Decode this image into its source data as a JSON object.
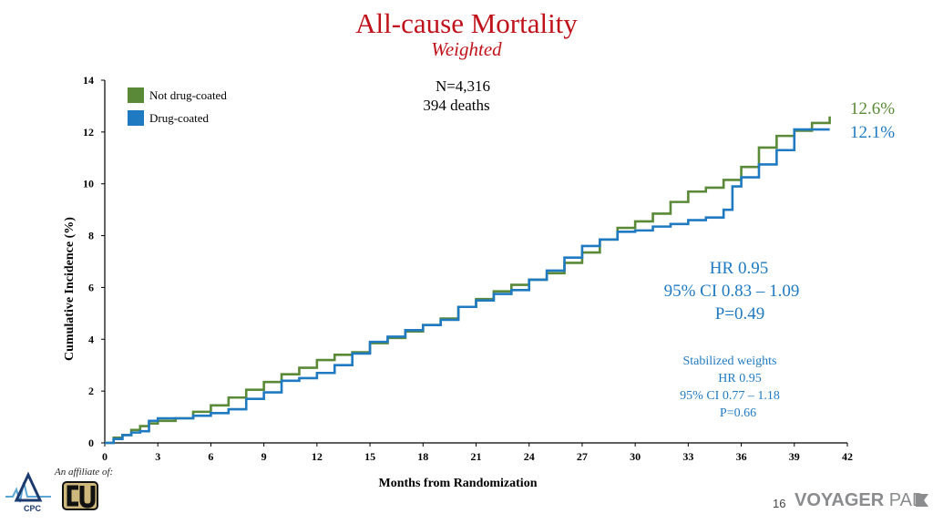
{
  "header": {
    "title": "All-cause Mortality",
    "subtitle": "Weighted"
  },
  "chart_data": {
    "type": "line",
    "xlabel": "Months from Randomization",
    "ylabel": "Cumulative Incidence (%)",
    "xlim": [
      0,
      42
    ],
    "ylim": [
      0,
      14
    ],
    "xticks": [
      0,
      3,
      6,
      9,
      12,
      15,
      18,
      21,
      24,
      27,
      30,
      33,
      36,
      39,
      42
    ],
    "yticks": [
      0,
      2,
      4,
      6,
      8,
      10,
      12,
      14
    ],
    "legend_position": "top-left",
    "series": [
      {
        "name": "Not drug-coated",
        "color": "#5a8a37",
        "end_label": "12.6%",
        "points": [
          [
            0,
            0
          ],
          [
            0.5,
            0.2
          ],
          [
            1,
            0.3
          ],
          [
            1.5,
            0.5
          ],
          [
            2,
            0.65
          ],
          [
            2.5,
            0.75
          ],
          [
            3,
            0.85
          ],
          [
            4,
            0.95
          ],
          [
            5,
            1.2
          ],
          [
            6,
            1.45
          ],
          [
            7,
            1.75
          ],
          [
            8,
            2.05
          ],
          [
            9,
            2.35
          ],
          [
            10,
            2.65
          ],
          [
            11,
            2.9
          ],
          [
            12,
            3.2
          ],
          [
            13,
            3.4
          ],
          [
            14,
            3.5
          ],
          [
            15,
            3.85
          ],
          [
            16,
            4.05
          ],
          [
            17,
            4.3
          ],
          [
            18,
            4.55
          ],
          [
            19,
            4.8
          ],
          [
            20,
            5.25
          ],
          [
            21,
            5.55
          ],
          [
            22,
            5.85
          ],
          [
            23,
            6.1
          ],
          [
            24,
            6.3
          ],
          [
            25,
            6.55
          ],
          [
            26,
            6.95
          ],
          [
            27,
            7.35
          ],
          [
            28,
            7.85
          ],
          [
            29,
            8.3
          ],
          [
            30,
            8.55
          ],
          [
            31,
            8.85
          ],
          [
            32,
            9.3
          ],
          [
            33,
            9.7
          ],
          [
            34,
            9.85
          ],
          [
            35,
            10.15
          ],
          [
            36,
            10.65
          ],
          [
            37,
            11.4
          ],
          [
            38,
            11.85
          ],
          [
            39,
            12.05
          ],
          [
            40,
            12.35
          ],
          [
            41,
            12.6
          ]
        ]
      },
      {
        "name": "Drug-coated",
        "color": "#1f7ac1",
        "end_label": "12.1%",
        "points": [
          [
            0,
            0
          ],
          [
            0.5,
            0.15
          ],
          [
            1,
            0.3
          ],
          [
            1.5,
            0.4
          ],
          [
            2,
            0.45
          ],
          [
            2.5,
            0.85
          ],
          [
            3,
            0.95
          ],
          [
            4,
            0.95
          ],
          [
            5,
            1.05
          ],
          [
            6,
            1.15
          ],
          [
            7,
            1.3
          ],
          [
            8,
            1.7
          ],
          [
            9,
            1.95
          ],
          [
            10,
            2.4
          ],
          [
            11,
            2.5
          ],
          [
            12,
            2.7
          ],
          [
            13,
            3.0
          ],
          [
            14,
            3.45
          ],
          [
            15,
            3.9
          ],
          [
            16,
            4.1
          ],
          [
            17,
            4.35
          ],
          [
            18,
            4.55
          ],
          [
            19,
            4.75
          ],
          [
            20,
            5.25
          ],
          [
            21,
            5.5
          ],
          [
            22,
            5.75
          ],
          [
            23,
            5.9
          ],
          [
            24,
            6.3
          ],
          [
            25,
            6.65
          ],
          [
            26,
            7.15
          ],
          [
            27,
            7.6
          ],
          [
            28,
            7.85
          ],
          [
            29,
            8.15
          ],
          [
            30,
            8.2
          ],
          [
            31,
            8.35
          ],
          [
            32,
            8.45
          ],
          [
            33,
            8.6
          ],
          [
            34,
            8.7
          ],
          [
            35,
            9.0
          ],
          [
            35.5,
            9.9
          ],
          [
            36,
            10.25
          ],
          [
            37,
            10.75
          ],
          [
            38,
            11.3
          ],
          [
            39,
            12.1
          ],
          [
            40,
            12.1
          ],
          [
            41,
            12.1
          ]
        ]
      }
    ],
    "annotations": {
      "n": "N=4,316",
      "deaths": "394 deaths",
      "hr": "HR 0.95",
      "ci": "95% CI 0.83 – 1.09",
      "p": "P=0.49",
      "stab_title": "Stabilized weights",
      "stab_hr": "HR 0.95",
      "stab_ci": "95% CI 0.77 – 1.18",
      "stab_p": "P=0.66"
    }
  },
  "footer": {
    "affiliate": "An affiliate of:",
    "cpc_label": "CPC",
    "page": "16",
    "brand_bold": "VOYAGER",
    "brand_light": "PAD"
  }
}
